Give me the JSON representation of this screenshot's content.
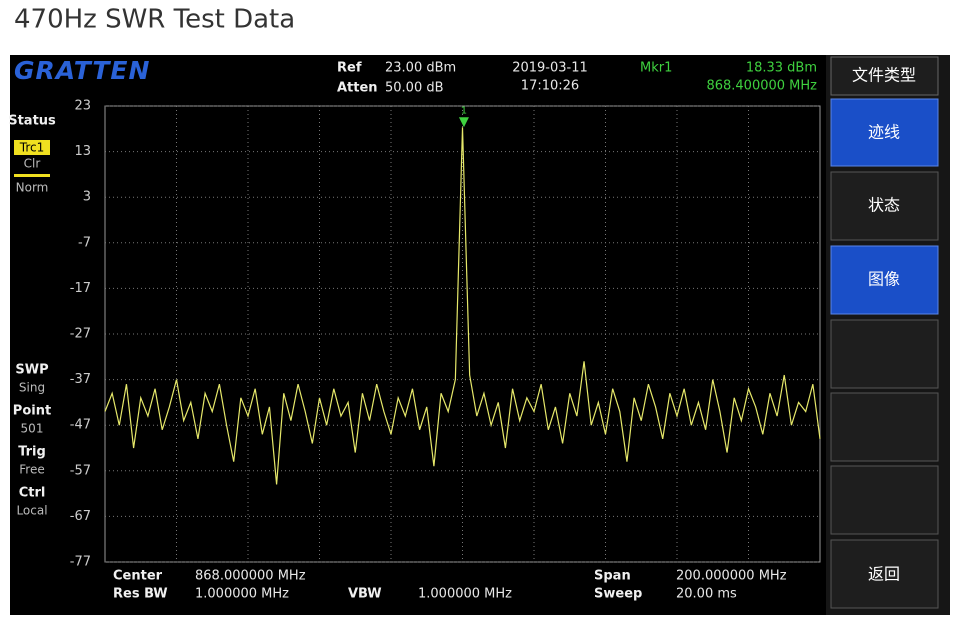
{
  "page_title": "470Hz SWR Test Data",
  "header": {
    "logo": "GRATTEN",
    "ref_label": "Ref",
    "ref_value": "23.00 dBm",
    "atten_label": "Atten",
    "atten_value": "50.00 dB",
    "date": "2019-03-11",
    "time": "17:10:26",
    "marker_name": "Mkr1",
    "marker_level": "18.33 dBm",
    "marker_freq": "868.400000 MHz"
  },
  "status_panel": {
    "status": "Status",
    "trace": "Trc1",
    "trace_mode": "Clr",
    "detector": "Norm",
    "swp_label": "SWP",
    "swp_value": "Sing",
    "point_label": "Point",
    "point_value": "501",
    "trig_label": "Trig",
    "trig_value": "Free",
    "ctrl_label": "Ctrl",
    "ctrl_value": "Local"
  },
  "footer": {
    "center_label": "Center",
    "center_value": "868.000000 MHz",
    "rbw_label": "Res BW",
    "rbw_value": "1.000000 MHz",
    "vbw_label": "VBW",
    "vbw_value": "1.000000 MHz",
    "span_label": "Span",
    "span_value": "200.000000 MHz",
    "sweep_label": "Sweep",
    "sweep_value": "20.00 ms"
  },
  "menu": [
    "文件类型",
    "迹线",
    "状态",
    "图像",
    "返回"
  ],
  "chart_data": {
    "type": "line",
    "color": "#e6e86a",
    "grid": true,
    "xlim": [
      768,
      968
    ],
    "ylim": [
      -77,
      23
    ],
    "yticks": [
      23,
      13,
      3,
      -7,
      -17,
      -27,
      -37,
      -47,
      -57,
      -67,
      -77
    ],
    "marker": {
      "label": "1",
      "x": 868.4,
      "y": 18.33,
      "color": "#3fd13f"
    },
    "x": [
      768,
      770,
      772,
      774,
      776,
      778,
      780,
      782,
      784,
      786,
      788,
      790,
      792,
      794,
      796,
      798,
      800,
      802,
      804,
      806,
      808,
      810,
      812,
      814,
      816,
      818,
      820,
      822,
      824,
      826,
      828,
      830,
      832,
      834,
      836,
      838,
      840,
      842,
      844,
      846,
      848,
      850,
      852,
      854,
      856,
      858,
      860,
      862,
      864,
      866,
      868,
      870,
      872,
      874,
      876,
      878,
      880,
      882,
      884,
      886,
      888,
      890,
      892,
      894,
      896,
      898,
      900,
      902,
      904,
      906,
      908,
      910,
      912,
      914,
      916,
      918,
      920,
      922,
      924,
      926,
      928,
      930,
      932,
      934,
      936,
      938,
      940,
      942,
      944,
      946,
      948,
      950,
      952,
      954,
      956,
      958,
      960,
      962,
      964,
      966,
      968
    ],
    "values": [
      -44,
      -40,
      -47,
      -38,
      -52,
      -41,
      -45,
      -39,
      -48,
      -43,
      -37,
      -46,
      -42,
      -50,
      -40,
      -44,
      -38,
      -47,
      -55,
      -41,
      -45,
      -39,
      -49,
      -43,
      -60,
      -40,
      -46,
      -38,
      -44,
      -51,
      -41,
      -47,
      -39,
      -45,
      -42,
      -53,
      -40,
      -46,
      -38,
      -44,
      -49,
      -41,
      -45,
      -39,
      -48,
      -43,
      -56,
      -40,
      -44,
      -37,
      18.33,
      -36,
      -45,
      -40,
      -47,
      -42,
      -52,
      -39,
      -46,
      -41,
      -44,
      -38,
      -48,
      -43,
      -51,
      -40,
      -45,
      -33,
      -47,
      -42,
      -49,
      -39,
      -44,
      -55,
      -41,
      -46,
      -38,
      -43,
      -50,
      -40,
      -45,
      -39,
      -47,
      -42,
      -48,
      -37,
      -44,
      -53,
      -41,
      -46,
      -39,
      -43,
      -49,
      -40,
      -45,
      -36,
      -47,
      -42,
      -44,
      -38,
      -50
    ]
  }
}
